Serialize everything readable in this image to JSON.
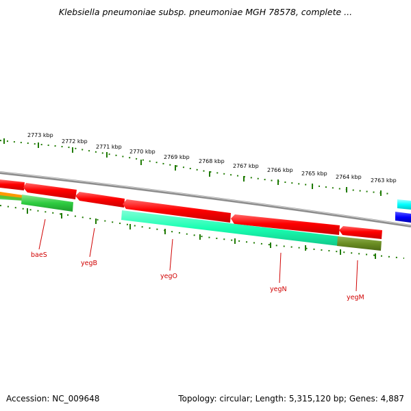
{
  "title": "Klebsiella pneumoniae subsp. pneumoniae MGH 78578, complete ...",
  "footer": {
    "accession": "Accession: NC_009648",
    "topology": "Topology: circular; Length: 5,315,120 bp; Genes: 4,887"
  },
  "ruler": {
    "labels": [
      "2773 kbp",
      "2772 kbp",
      "2771 kbp",
      "2770 kbp",
      "2769 kbp",
      "2768 kbp",
      "2767 kbp",
      "2766 kbp",
      "2765 kbp",
      "2764 kbp",
      "2763 kbp"
    ]
  },
  "genes": [
    "baeS",
    "yegB",
    "yegO",
    "yegN",
    "yegM"
  ],
  "colors": {
    "forward_cds": "#ff0000",
    "reverse_cds_teal": "#19ffb2",
    "reverse_cds_green": "#2ecc40",
    "olive": "#6b8e23",
    "orange": "#ff9900",
    "cyan": "#00ffff",
    "blue": "#0000ff",
    "backbone": "#8c8c8c",
    "ticks": "#1e7a00",
    "gene_label": "#d00000"
  }
}
